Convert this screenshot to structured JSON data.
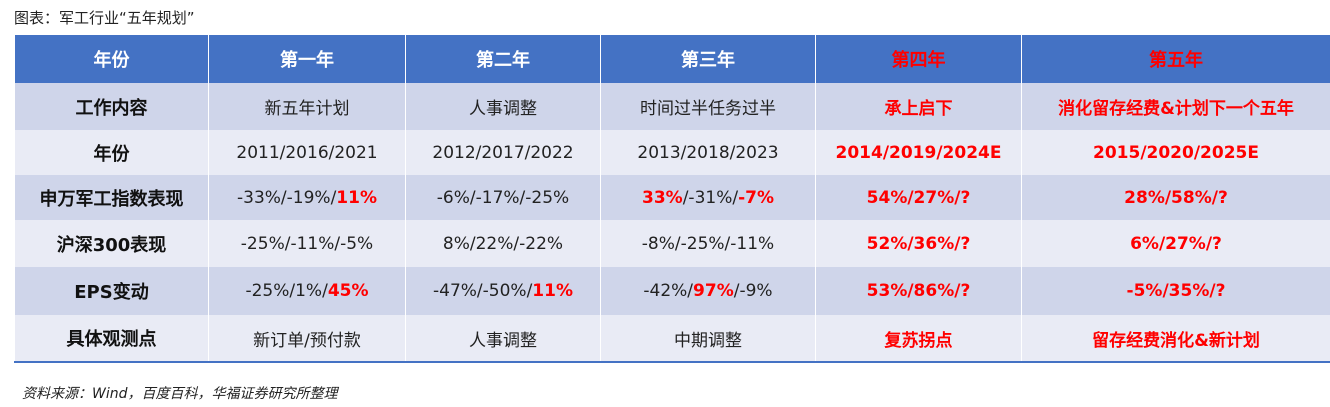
{
  "caption": "图表：军工行业“五年规划”",
  "source": "资料来源：Wind，百度百科，华福证券研究所整理",
  "header": {
    "label": "年份",
    "years": [
      "第一年",
      "第二年",
      "第三年",
      "第四年",
      "第五年"
    ]
  },
  "rows": [
    {
      "label": "工作内容",
      "cells": [
        "新五年计划",
        "人事调整",
        "时间过半任务过半",
        "承上启下",
        "消化留存经费&计划下一个五年"
      ]
    },
    {
      "label": "年份",
      "cells": [
        "2011/2016/2021",
        "2012/2017/2022",
        "2013/2018/2023",
        "2014/2019/2024E",
        "2015/2020/2025E"
      ]
    },
    {
      "label": "申万军工指数表现",
      "cells": [
        {
          "a": "-33%/-19%/",
          "b": "11%",
          "c": ""
        },
        {
          "a": "-6%/-17%/-25%",
          "b": "",
          "c": ""
        },
        {
          "a": "",
          "b": "33%",
          "c": "/-31%/",
          "d": "-7%"
        },
        "54%/27%/?",
        "28%/58%/?"
      ]
    },
    {
      "label": "沪深300表现",
      "cells": [
        "-25%/-11%/-5%",
        "8%/22%/-22%",
        "-8%/-25%/-11%",
        "52%/36%/?",
        "6%/27%/?"
      ]
    },
    {
      "label": "EPS变动",
      "cells": [
        {
          "a": "-25%/1%/",
          "b": "45%",
          "c": ""
        },
        {
          "a": "-47%/-50%/",
          "b": "11%",
          "c": ""
        },
        {
          "a": "-42%/",
          "b": "97%",
          "c": "/-9%"
        },
        "53%/86%/?",
        "-5%/35%/?"
      ]
    },
    {
      "label": "具体观测点",
      "cells": [
        "新订单/预付款",
        "人事调整",
        "中期调整",
        "复苏拐点",
        "留存经费消化&新计划"
      ]
    }
  ]
}
